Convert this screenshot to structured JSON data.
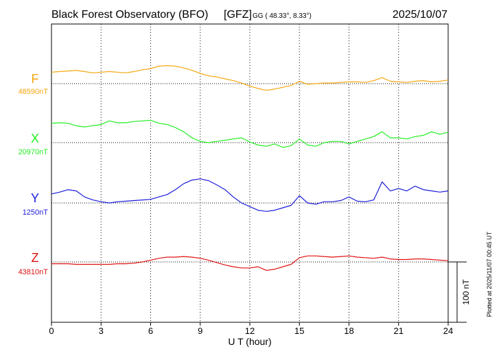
{
  "header": {
    "station": "Black Forest Observatory (BFO)",
    "org": "[GFZ]",
    "coord_label": "GG ( 48.33°,   8.33°)",
    "date": "2025/10/07"
  },
  "footer_note": "Plotted at 2025/11/07 00:45 UT",
  "chart_data": {
    "type": "line",
    "xlabel": "U T (hour)",
    "xlim": [
      0,
      24
    ],
    "xticks": [
      0,
      3,
      6,
      9,
      12,
      15,
      18,
      21,
      24
    ],
    "grid": true,
    "scale_bar": {
      "label": "100 nT",
      "value_nT": 100
    },
    "series": [
      {
        "name": "F",
        "baseline_label": "48590nT",
        "baseline_nT": 48590,
        "color": "#f5a70f",
        "x": [
          0,
          0.5,
          1,
          1.5,
          2,
          2.5,
          3,
          3.5,
          4,
          4.5,
          5,
          5.5,
          6,
          6.5,
          7,
          7.5,
          8,
          8.5,
          9,
          9.5,
          10,
          10.5,
          11,
          11.5,
          12,
          12.5,
          13,
          13.5,
          14,
          14.5,
          15,
          15.5,
          16,
          16.5,
          17,
          17.5,
          18,
          18.5,
          19,
          19.5,
          20,
          20.5,
          21,
          21.5,
          22,
          22.5,
          23,
          23.5,
          24
        ],
        "values": [
          19,
          20,
          21,
          22,
          20,
          18,
          19,
          20,
          19,
          18,
          20,
          23,
          25,
          29,
          30,
          29,
          26,
          22,
          17,
          13,
          11,
          8,
          5,
          1,
          -4,
          -8,
          -11,
          -9,
          -6,
          -3,
          4,
          -1,
          0,
          1,
          1,
          2,
          3,
          3,
          2,
          5,
          10,
          4,
          3,
          2,
          4,
          5,
          3,
          4,
          6
        ]
      },
      {
        "name": "X",
        "baseline_label": "20970nT",
        "baseline_nT": 20970,
        "color": "#22ee22",
        "x": [
          0,
          0.5,
          1,
          1.5,
          2,
          2.5,
          3,
          3.5,
          4,
          4.5,
          5,
          5.5,
          6,
          6.5,
          7,
          7.5,
          8,
          8.5,
          9,
          9.5,
          10,
          10.5,
          11,
          11.5,
          12,
          12.5,
          13,
          13.5,
          14,
          14.5,
          15,
          15.5,
          16,
          16.5,
          17,
          17.5,
          18,
          18.5,
          19,
          19.5,
          20,
          20.5,
          21,
          21.5,
          22,
          22.5,
          23,
          23.5,
          24
        ],
        "values": [
          32,
          33,
          32,
          28,
          26,
          28,
          30,
          36,
          33,
          33,
          35,
          36,
          37,
          32,
          30,
          25,
          18,
          8,
          2,
          0,
          2,
          4,
          6,
          8,
          1,
          -4,
          -6,
          -2,
          -8,
          -5,
          6,
          -4,
          -6,
          0,
          2,
          2,
          -2,
          2,
          6,
          10,
          18,
          8,
          8,
          6,
          10,
          12,
          18,
          14,
          17
        ]
      },
      {
        "name": "Y",
        "baseline_label": "1250nT",
        "baseline_nT": 1250,
        "color": "#1a1adc",
        "x": [
          0,
          0.5,
          1,
          1.5,
          2,
          2.5,
          3,
          3.5,
          4,
          4.5,
          5,
          5.5,
          6,
          6.5,
          7,
          7.5,
          8,
          8.5,
          9,
          9.5,
          10,
          10.5,
          11,
          11.5,
          12,
          12.5,
          13,
          13.5,
          14,
          14.5,
          15,
          15.5,
          16,
          16.5,
          17,
          17.5,
          18,
          18.5,
          19,
          19.5,
          20,
          20.5,
          21,
          21.5,
          22,
          22.5,
          23,
          23.5,
          24
        ],
        "values": [
          15,
          18,
          22,
          20,
          10,
          5,
          2,
          0,
          2,
          3,
          4,
          5,
          6,
          10,
          14,
          22,
          32,
          38,
          40,
          37,
          30,
          22,
          10,
          0,
          -6,
          -12,
          -14,
          -12,
          -8,
          -4,
          12,
          0,
          -2,
          2,
          2,
          4,
          10,
          3,
          2,
          5,
          35,
          20,
          24,
          20,
          28,
          22,
          20,
          18,
          20
        ]
      },
      {
        "name": "Z",
        "baseline_label": "43810nT",
        "baseline_nT": 43810,
        "color": "#e01010",
        "x": [
          0,
          0.5,
          1,
          1.5,
          2,
          2.5,
          3,
          3.5,
          4,
          4.5,
          5,
          5.5,
          6,
          6.5,
          7,
          7.5,
          8,
          8.5,
          9,
          9.5,
          10,
          10.5,
          11,
          11.5,
          12,
          12.5,
          13,
          13.5,
          14,
          14.5,
          15,
          15.5,
          16,
          16.5,
          17,
          17.5,
          18,
          18.5,
          19,
          19.5,
          20,
          20.5,
          21,
          21.5,
          22,
          22.5,
          23,
          23.5,
          24
        ],
        "values": [
          -3,
          -3,
          -3,
          -4,
          -4,
          -4,
          -4,
          -4,
          -3,
          -3,
          -2,
          0,
          3,
          6,
          8,
          8,
          9,
          8,
          6,
          3,
          -1,
          -5,
          -8,
          -10,
          -10,
          -8,
          -14,
          -12,
          -8,
          -4,
          7,
          10,
          10,
          9,
          8,
          9,
          10,
          8,
          7,
          6,
          8,
          5,
          4,
          4,
          5,
          5,
          4,
          3,
          2
        ]
      }
    ]
  }
}
